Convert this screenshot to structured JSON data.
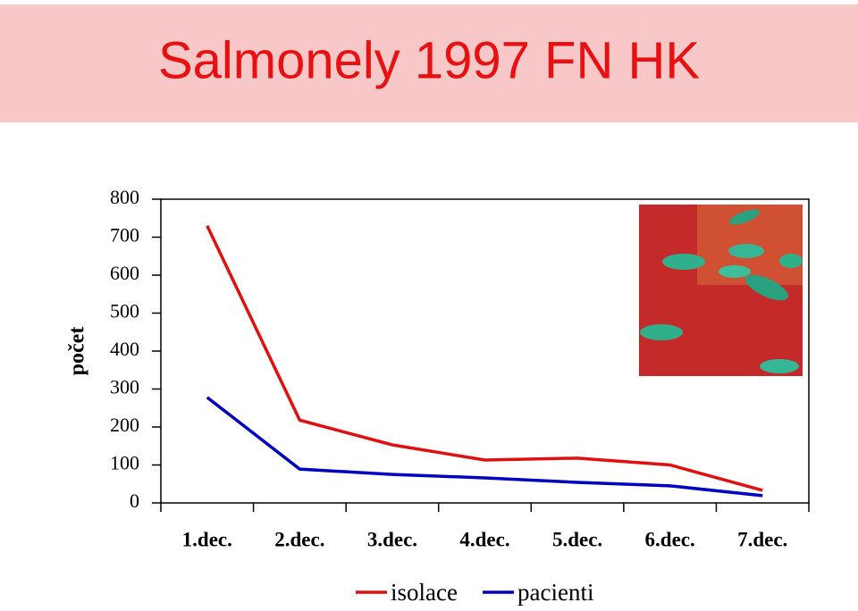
{
  "chart_data": {
    "type": "line",
    "title": "Salmonely 1997 FN HK",
    "y_label": "počet",
    "categories": [
      "1.dec.",
      "2.dec.",
      "3.dec.",
      "4.dec.",
      "5.dec.",
      "6.dec.",
      "7.dec."
    ],
    "series": [
      {
        "name": "isolace",
        "color": "#e01010",
        "values": [
          730,
          218,
          153,
          113,
          118,
          100,
          33
        ]
      },
      {
        "name": "pacienti",
        "color": "#0000c0",
        "values": [
          278,
          89,
          75,
          66,
          54,
          45,
          19
        ]
      }
    ],
    "ylim": [
      0,
      800
    ],
    "yticks": [
      0,
      100,
      200,
      300,
      400,
      500,
      600,
      700,
      800
    ],
    "grid": false,
    "legend": "bottom"
  }
}
